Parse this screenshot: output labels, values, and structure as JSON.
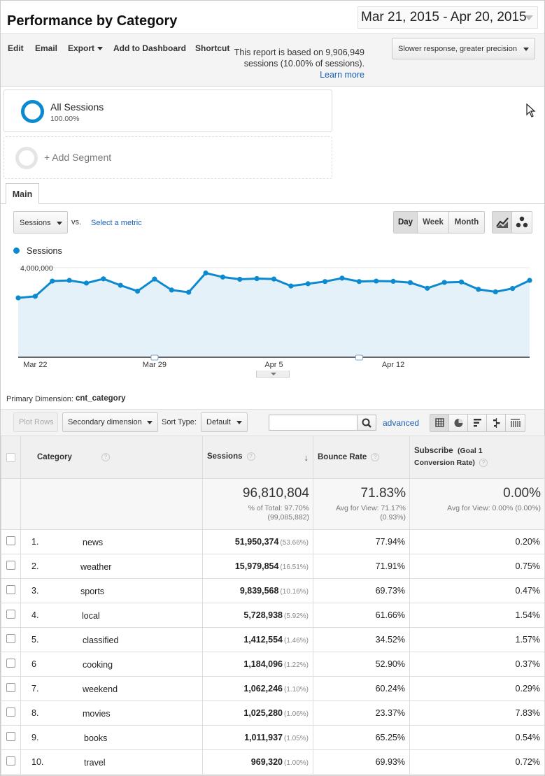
{
  "header": {
    "title": "Performance by Category",
    "date_range": "Mar 21, 2015 - Apr 20, 2015"
  },
  "toolbar": {
    "edit": "Edit",
    "email": "Email",
    "export": "Export",
    "add_to_dashboard": "Add to Dashboard",
    "shortcut": "Shortcut",
    "report_note": "This report is based on 9,906,949 sessions (10.00% of sessions).",
    "learn_more": "Learn more",
    "precision": "Slower response, greater precision"
  },
  "segments": {
    "all_name": "All Sessions",
    "all_pct": "100.00%",
    "add_label": "+ Add Segment"
  },
  "tabs": {
    "main": "Main"
  },
  "chart_controls": {
    "metric": "Sessions",
    "vs": "vs.",
    "select_metric": "Select a metric",
    "day": "Day",
    "week": "Week",
    "month": "Month"
  },
  "chart_data": {
    "type": "area",
    "legend": [
      "Sessions"
    ],
    "color": "#0b8ad0",
    "fill": "#e5f1f9",
    "y_ticks": [
      "4,000,000",
      "2,000,000"
    ],
    "ylim": [
      0,
      4400000
    ],
    "x_tick_labels": [
      {
        "index": 1,
        "label": "Mar 22"
      },
      {
        "index": 8,
        "label": "Mar 29"
      },
      {
        "index": 15,
        "label": "Apr 5"
      },
      {
        "index": 22,
        "label": "Apr 12"
      }
    ],
    "series": [
      {
        "name": "Sessions",
        "values": [
          2650000,
          2720000,
          3400000,
          3430000,
          3310000,
          3500000,
          3210000,
          2950000,
          3490000,
          3000000,
          2900000,
          3760000,
          3580000,
          3480000,
          3510000,
          3490000,
          3180000,
          3280000,
          3380000,
          3530000,
          3380000,
          3400000,
          3390000,
          3330000,
          3080000,
          3340000,
          3360000,
          3030000,
          2920000,
          3070000,
          3430000
        ]
      }
    ],
    "grid": true
  },
  "primary_dimension": {
    "label": "Primary Dimension:",
    "value": "cnt_category"
  },
  "table_controls": {
    "plot_rows": "Plot Rows",
    "secondary_dimension": "Secondary dimension",
    "sort_type_label": "Sort Type:",
    "sort_type_value": "Default",
    "advanced": "advanced"
  },
  "table": {
    "headers": {
      "category": "Category",
      "sessions": "Sessions",
      "bounce_rate": "Bounce Rate",
      "subscribe_line1": "Subscribe",
      "subscribe_goal": "(Goal 1",
      "subscribe_line2": "Conversion Rate)"
    },
    "totals": {
      "sessions": "96,810,804",
      "sessions_sub1": "% of Total: 97.70%",
      "sessions_sub2": "(99,085,882)",
      "bounce_rate": "71.83%",
      "bounce_sub1": "Avg for View: 71.17%",
      "bounce_sub2": "(0.93%)",
      "subscribe": "0.00%",
      "subscribe_sub1": "Avg for View: 0.00% (0.00%)"
    },
    "rows": [
      {
        "rank": "1.",
        "category": "news",
        "sessions": "51,950,374",
        "pct": "(53.66%)",
        "bounce": "77.94%",
        "subscribe": "0.20%"
      },
      {
        "rank": "2.",
        "category": "weather",
        "sessions": "15,979,854",
        "pct": "(16.51%)",
        "bounce": "71.91%",
        "subscribe": "0.75%"
      },
      {
        "rank": "3.",
        "category": "sports",
        "sessions": "9,839,568",
        "pct": "(10.16%)",
        "bounce": "69.73%",
        "subscribe": "0.47%"
      },
      {
        "rank": "4.",
        "category": "local",
        "sessions": "5,728,938",
        "pct": "(5.92%)",
        "bounce": "61.66%",
        "subscribe": "1.54%"
      },
      {
        "rank": "5.",
        "category": "classified",
        "sessions": "1,412,554",
        "pct": "(1.46%)",
        "bounce": "34.52%",
        "subscribe": "1.57%"
      },
      {
        "rank": "6",
        "category": "cooking",
        "sessions": "1,184,096",
        "pct": "(1.22%)",
        "bounce": "52.90%",
        "subscribe": "0.37%"
      },
      {
        "rank": "7.",
        "category": "weekend",
        "sessions": "1,062,246",
        "pct": "(1.10%)",
        "bounce": "60.24%",
        "subscribe": "0.29%"
      },
      {
        "rank": "8.",
        "category": "movies",
        "sessions": "1,025,280",
        "pct": "(1.06%)",
        "bounce": "23.37%",
        "subscribe": "7.83%"
      },
      {
        "rank": "9.",
        "category": "books",
        "sessions": "1,011,937",
        "pct": "(1.05%)",
        "bounce": "65.25%",
        "subscribe": "0.54%"
      },
      {
        "rank": "10.",
        "category": "travel",
        "sessions": "969,320",
        "pct": "(1.00%)",
        "bounce": "69.93%",
        "subscribe": "0.72%"
      }
    ]
  }
}
